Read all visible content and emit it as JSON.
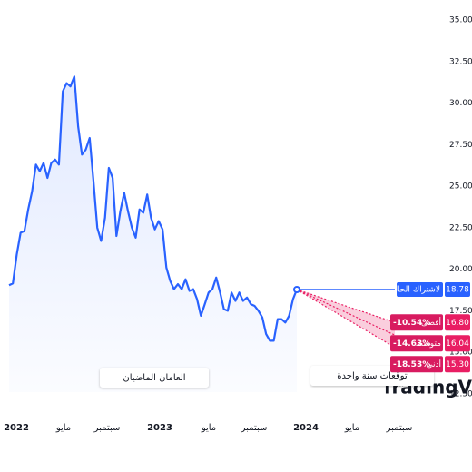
{
  "chart_data": {
    "type": "line",
    "series": [
      {
        "color": "#2962ff",
        "values": [
          19.04,
          19.15,
          20.9,
          22.2,
          22.3,
          23.6,
          24.7,
          26.3,
          25.9,
          26.4,
          25.5,
          26.4,
          26.6,
          26.3,
          30.7,
          31.2,
          31.0,
          31.6,
          28.6,
          26.9,
          27.2,
          27.9,
          25.3,
          22.5,
          21.7,
          23.1,
          26.1,
          25.5,
          22.0,
          23.5,
          24.6,
          23.5,
          22.5,
          21.9,
          23.6,
          23.4,
          24.5,
          23.1,
          22.4,
          22.9,
          22.4,
          20.1,
          19.3,
          18.8,
          19.1,
          18.8,
          19.4,
          18.7,
          18.8,
          18.2,
          17.2,
          17.9,
          18.6,
          18.8,
          19.5,
          18.6,
          17.6,
          17.5,
          18.6,
          18.1,
          18.6,
          18.1,
          18.3,
          17.9,
          17.8,
          17.5,
          17.1,
          16.1,
          15.7,
          15.7,
          17.0,
          17.0,
          16.8,
          17.2,
          18.2,
          18.78
        ]
      }
    ],
    "current": {
      "name": "لاشتراك الحالي",
      "value": 18.78,
      "color": "#2962ff"
    },
    "forecast": {
      "color": "#e91e63",
      "names": [
        "أقصى",
        "متوسط",
        "أدنى"
      ],
      "values": [
        16.8,
        16.04,
        15.3
      ],
      "value_labels": [
        "16.80",
        "16.04",
        "15.30"
      ],
      "changes": [
        -10.54,
        -14.63,
        -18.53
      ],
      "change_labels": [
        "-10.54%",
        "-14.63%",
        "-18.53%"
      ]
    },
    "x_labels": [
      "2022",
      "مايو",
      "سبتمبر",
      "2023",
      "مايو",
      "سبتمبر",
      "2024",
      "مايو",
      "سبتمبر"
    ],
    "annotations": [
      "العامان الماضيان",
      "توقعات سنة واحدة"
    ],
    "watermark": "TradingView",
    "ylim": [
      12.5,
      35
    ],
    "yticks": [
      {
        "value": 12.5,
        "label": "12.50"
      },
      {
        "value": 15,
        "label": "15.00"
      },
      {
        "value": 17.5,
        "label": "17.50"
      },
      {
        "value": 20,
        "label": "20.00"
      },
      {
        "value": 22.5,
        "label": "22.50"
      },
      {
        "value": 25,
        "label": "25.00"
      },
      {
        "value": 27.5,
        "label": "27.50"
      },
      {
        "value": 30,
        "label": "30.00"
      },
      {
        "value": 32.5,
        "label": "32.50"
      },
      {
        "value": 35,
        "label": "35.00"
      }
    ],
    "grid": false
  }
}
